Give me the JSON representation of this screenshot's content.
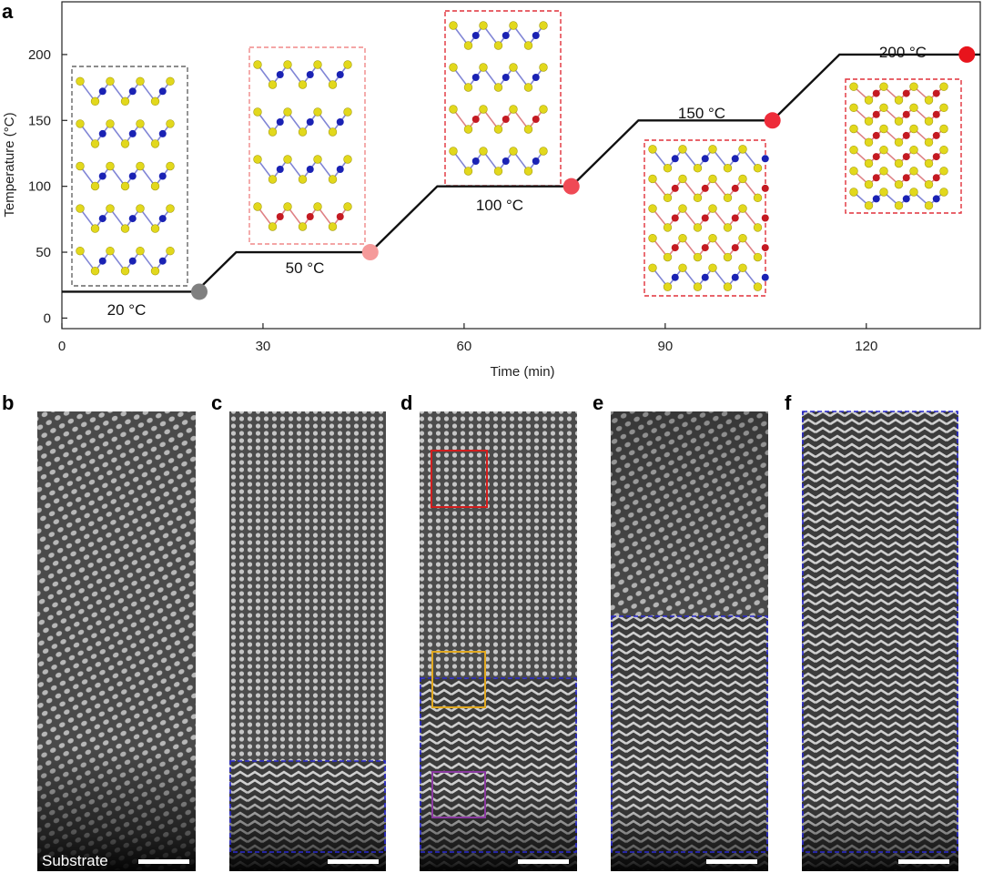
{
  "panel_labels": {
    "a": "a",
    "b": "b",
    "c": "c",
    "d": "d",
    "e": "e",
    "f": "f"
  },
  "chart_data": {
    "type": "line",
    "xlabel": "Time (min)",
    "ylabel": "Temperature (°C)",
    "xlim": [
      0,
      137
    ],
    "ylim": [
      -8,
      240
    ],
    "xticks": [
      0,
      30,
      60,
      90,
      120
    ],
    "yticks": [
      0,
      50,
      100,
      150,
      200
    ],
    "grid": false,
    "series": [
      {
        "x": [
          0,
          20,
          26,
          46,
          56,
          76,
          86,
          106,
          116,
          137
        ],
        "y": [
          20,
          20,
          50,
          50,
          100,
          100,
          150,
          150,
          200,
          200
        ]
      }
    ],
    "markers": [
      {
        "x": 20.5,
        "y": 20,
        "color": "#808080"
      },
      {
        "x": 46,
        "y": 50,
        "color": "#f59a9a"
      },
      {
        "x": 76,
        "y": 100,
        "color": "#ef4a55"
      },
      {
        "x": 106,
        "y": 150,
        "color": "#ee2c3a"
      },
      {
        "x": 135,
        "y": 200,
        "color": "#e8141c"
      }
    ],
    "annotations": [
      "20 °C",
      "50 °C",
      "100 °C",
      "150 °C",
      "200 °C"
    ]
  },
  "atom_colors": {
    "chalcogen": "#e2d81c",
    "metal_blue": "#1a22b4",
    "metal_red": "#c41a22"
  },
  "structure_frames": [
    {
      "border": "#666666",
      "layers": [
        "b",
        "b",
        "b",
        "b",
        "b"
      ]
    },
    {
      "border": "#f08888",
      "layers": [
        "b",
        "b",
        "b",
        "r"
      ]
    },
    {
      "border": "#e0303a",
      "layers": [
        "b",
        "b",
        "r",
        "b"
      ]
    },
    {
      "border": "#e0303a",
      "layers": [
        "b",
        "r",
        "r",
        "r",
        "b"
      ]
    },
    {
      "border": "#e0303a",
      "layers": [
        "r",
        "r",
        "r",
        "r",
        "r",
        "b"
      ]
    }
  ],
  "stem_panels": {
    "b": {
      "substrate_label": "Substrate"
    },
    "region_box_color": "#2a2ad0",
    "roi_colors": [
      "#d21e1e",
      "#e0a820",
      "#8a3aa0"
    ]
  }
}
